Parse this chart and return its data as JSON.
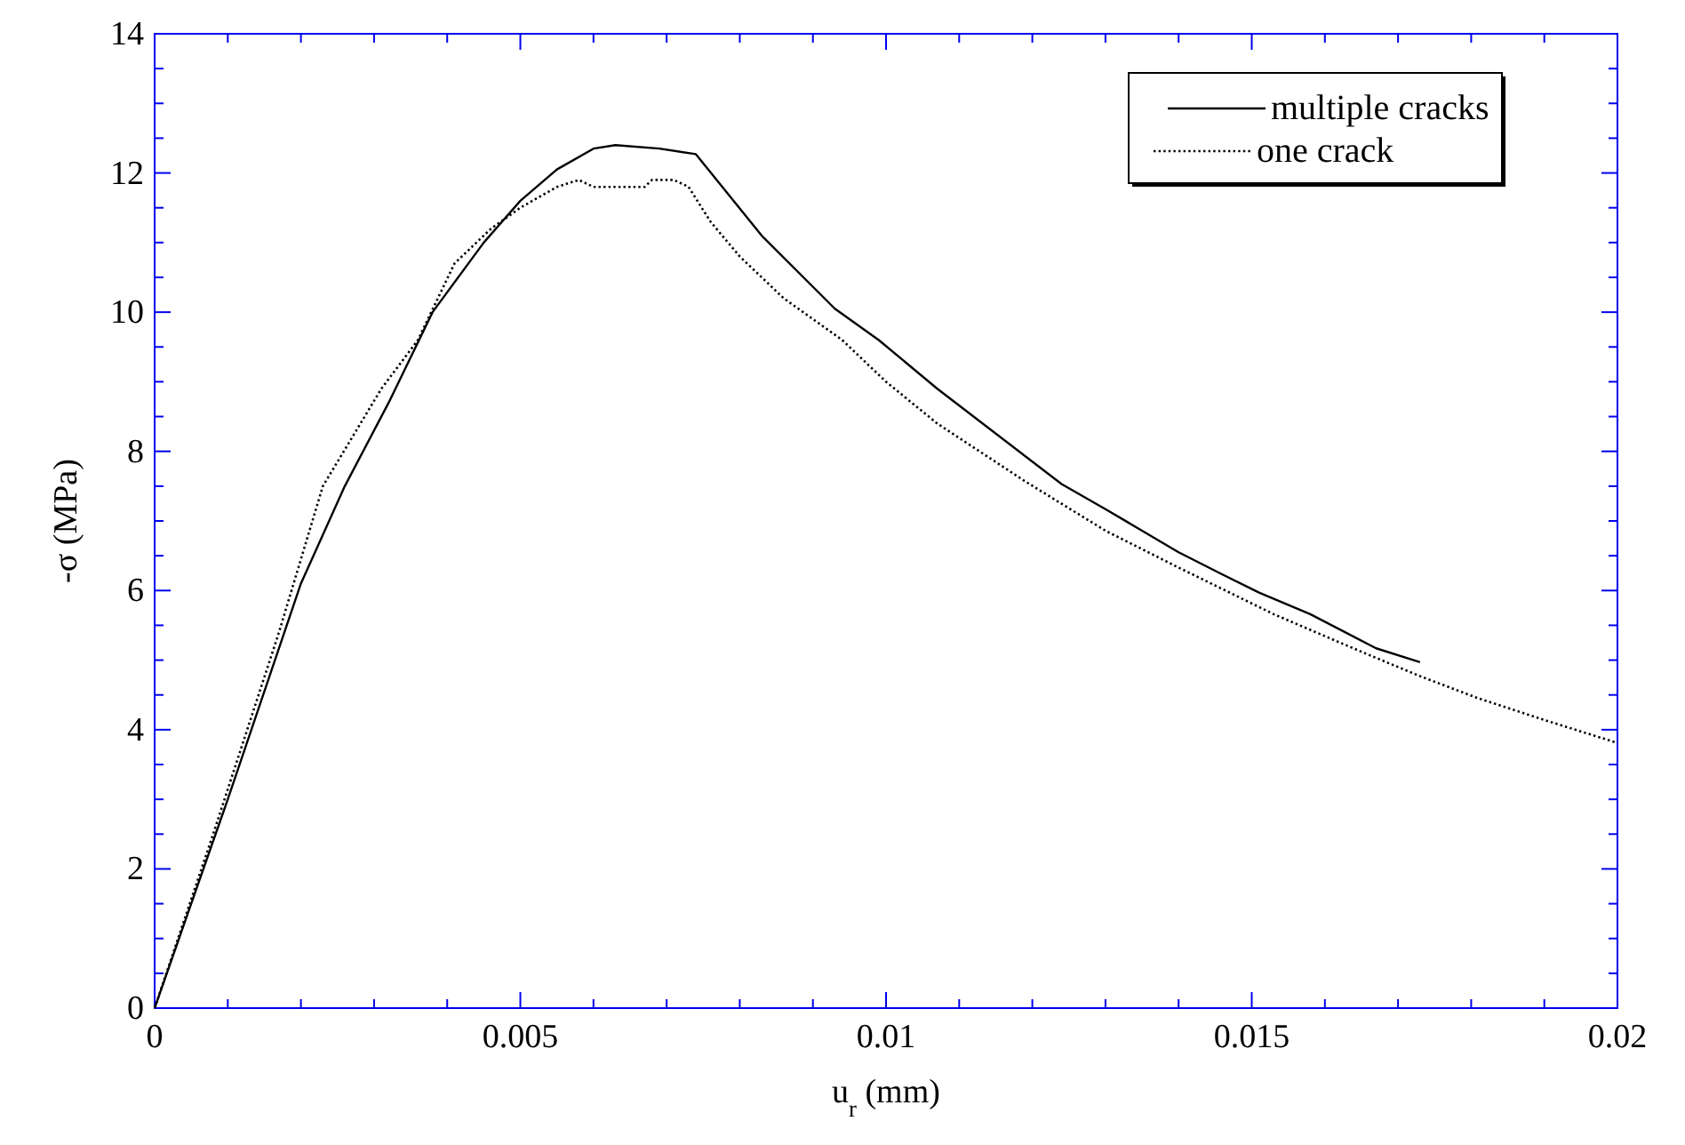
{
  "chart_data": {
    "type": "line",
    "xlabel": "u$_{r}$ (mm)",
    "ylabel": "-σ (MPa)",
    "xlim": [
      0,
      0.02
    ],
    "ylim": [
      0,
      14
    ],
    "xticks": [
      0,
      {
        "value": 0.001,
        "label": null
      },
      {
        "value": 0.002,
        "label": null
      },
      {
        "value": 0.003,
        "label": null
      },
      {
        "value": 0.004,
        "label": null
      },
      0.005,
      {
        "value": 0.006,
        "label": null
      },
      {
        "value": 0.007,
        "label": null
      },
      {
        "value": 0.008,
        "label": null
      },
      {
        "value": 0.009,
        "label": null
      },
      0.01,
      {
        "value": 0.011,
        "label": null
      },
      {
        "value": 0.012,
        "label": null
      },
      {
        "value": 0.013,
        "label": null
      },
      {
        "value": 0.014,
        "label": null
      },
      0.015,
      {
        "value": 0.016,
        "label": null
      },
      {
        "value": 0.017,
        "label": null
      },
      {
        "value": 0.018,
        "label": null
      },
      {
        "value": 0.019,
        "label": null
      },
      0.02
    ],
    "yticks": [
      0,
      {
        "value": 0.5,
        "label": null
      },
      {
        "value": 1,
        "label": null
      },
      {
        "value": 1.5,
        "label": null
      },
      2,
      {
        "value": 2.5,
        "label": null
      },
      {
        "value": 3,
        "label": null
      },
      {
        "value": 3.5,
        "label": null
      },
      4,
      {
        "value": 4.5,
        "label": null
      },
      {
        "value": 5,
        "label": null
      },
      {
        "value": 5.5,
        "label": null
      },
      6,
      {
        "value": 6.5,
        "label": null
      },
      {
        "value": 7,
        "label": null
      },
      {
        "value": 7.5,
        "label": null
      },
      8,
      {
        "value": 8.5,
        "label": null
      },
      {
        "value": 9,
        "label": null
      },
      {
        "value": 9.5,
        "label": null
      },
      10,
      {
        "value": 10.5,
        "label": null
      },
      {
        "value": 11,
        "label": null
      },
      {
        "value": 11.5,
        "label": null
      },
      12,
      {
        "value": 12.5,
        "label": null
      },
      {
        "value": 13,
        "label": null
      },
      {
        "value": 13.5,
        "label": null
      },
      14
    ],
    "grid": false,
    "legend": "top right",
    "marker": "none",
    "series": [
      {
        "name": "multiple cracks",
        "color": "#000000",
        "line_style": "solid",
        "x": [
          0,
          0.001,
          0.002,
          0.0026,
          0.0032,
          0.0038,
          0.0045,
          0.005,
          0.0055,
          0.006,
          0.0063,
          0.0069,
          0.0074,
          0.0083,
          0.0093,
          0.0099,
          0.0107,
          0.0124,
          0.013,
          0.014,
          0.0146,
          0.0151,
          0.0158,
          0.0167,
          0.0173
        ],
        "values": [
          0,
          3.0,
          6.1,
          7.5,
          8.7,
          10.0,
          11.0,
          11.6,
          12.05,
          12.35,
          12.4,
          12.35,
          12.27,
          11.1,
          10.05,
          9.6,
          8.9,
          7.53,
          7.17,
          6.55,
          6.23,
          5.97,
          5.66,
          5.17,
          4.97
        ]
      },
      {
        "name": "one crack",
        "color": "#000000",
        "line_style": "dotted",
        "x": [
          0,
          0.0008,
          0.0017,
          0.0023,
          0.0031,
          0.0036,
          0.0041,
          0.0046,
          0.005,
          0.0055,
          0.0058,
          0.006,
          0.0067,
          0.0068,
          0.0071,
          0.0073,
          0.0076,
          0.008,
          0.0086,
          0.0094,
          0.01,
          0.0107,
          0.0119,
          0.013,
          0.014,
          0.0153,
          0.0165,
          0.0173,
          0.0181,
          0.019,
          0.02
        ],
        "values": [
          0,
          2.5,
          5.4,
          7.5,
          8.9,
          9.6,
          10.7,
          11.2,
          11.5,
          11.8,
          11.9,
          11.8,
          11.8,
          11.9,
          11.9,
          11.8,
          11.3,
          10.8,
          10.2,
          9.6,
          9.0,
          8.4,
          7.57,
          6.86,
          6.33,
          5.66,
          5.12,
          4.77,
          4.45,
          4.14,
          3.81
        ]
      }
    ]
  }
}
